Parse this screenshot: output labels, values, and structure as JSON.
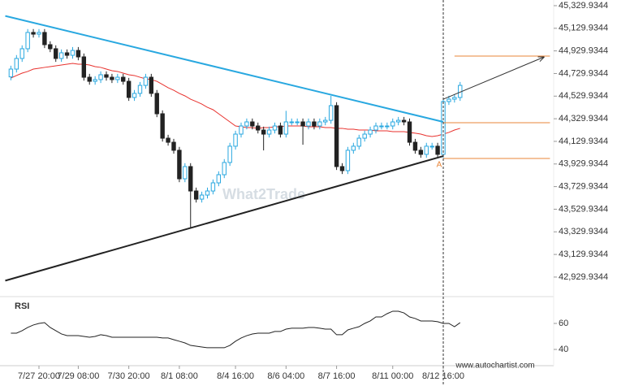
{
  "chart_data": {
    "type": "candlestick",
    "categories": [
      null,
      null,
      null,
      null,
      null,
      "7/27 20:00",
      null,
      null,
      null,
      null,
      null,
      null,
      "7/29 08:00",
      null,
      null,
      null,
      null,
      null,
      null,
      null,
      null,
      "7/30 20:00",
      null,
      null,
      null,
      null,
      null,
      null,
      null,
      null,
      "8/1 08:00",
      null,
      null,
      null,
      null,
      null,
      null,
      null,
      null,
      null,
      "8/4 16:00",
      null,
      null,
      null,
      null,
      null,
      null,
      null,
      null,
      "8/6 04:00",
      null,
      null,
      null,
      null,
      null,
      null,
      null,
      null,
      "8/7 16:00",
      null,
      null,
      null,
      null,
      null,
      null,
      null,
      null,
      null,
      "8/11 00:00",
      null,
      null,
      null,
      null,
      null,
      null,
      null,
      null,
      "8/12 16:00",
      null,
      null,
      null
    ],
    "open": [
      44700,
      44769,
      44863,
      44949,
      45093,
      45078,
      45093,
      44985,
      44949,
      44863,
      44913,
      44891,
      44934,
      44877,
      44697,
      44661,
      44676,
      44719,
      44697,
      44676,
      44697,
      44661,
      44518,
      44554,
      44625,
      44697,
      44554,
      44374,
      44158,
      44122,
      44051,
      43799,
      43907,
      43691,
      43619,
      43655,
      43691,
      43763,
      43835,
      43943,
      44087,
      44194,
      44266,
      44302,
      44266,
      44230,
      44194,
      44230,
      44266,
      44194,
      44302,
      44302,
      44302,
      44266,
      44302,
      44266,
      44302,
      44316,
      44446,
      43907,
      43871,
      44051,
      44087,
      44158,
      44194,
      44230,
      44266,
      44266,
      44266,
      44302,
      44316,
      44302,
      44122,
      44051,
      44015,
      44087,
      44087,
      44015,
      44482,
      44503,
      44518
    ],
    "high": [
      44799,
      44893,
      44979,
      45123,
      45123,
      45123,
      45123,
      45015,
      44979,
      44943,
      44943,
      44964,
      44964,
      44907,
      44727,
      44706,
      44749,
      44749,
      44727,
      44727,
      44727,
      44691,
      44584,
      44655,
      44727,
      44727,
      44584,
      44404,
      44188,
      44152,
      44081,
      43937,
      43937,
      43721,
      43685,
      43721,
      43793,
      43865,
      43973,
      44117,
      44224,
      44296,
      44332,
      44332,
      44296,
      44260,
      44260,
      44296,
      44296,
      44400,
      44332,
      44332,
      44332,
      44332,
      44332,
      44332,
      44346,
      44532,
      44476,
      43937,
      44081,
      44117,
      44188,
      44224,
      44260,
      44296,
      44296,
      44296,
      44332,
      44346,
      44346,
      44332,
      44152,
      44081,
      44117,
      44117,
      44117,
      44512,
      44533,
      44548,
      44655
    ],
    "low": [
      44670,
      44739,
      44833,
      44919,
      45048,
      45048,
      44955,
      44919,
      44833,
      44833,
      44861,
      44861,
      44847,
      44667,
      44631,
      44631,
      44646,
      44667,
      44646,
      44646,
      44631,
      44488,
      44488,
      44524,
      44595,
      44524,
      44344,
      44128,
      44092,
      44021,
      43769,
      43769,
      43368,
      43589,
      43589,
      43625,
      43661,
      43733,
      43805,
      43913,
      44057,
      44164,
      44236,
      44236,
      44200,
      44050,
      44164,
      44200,
      44164,
      44164,
      44272,
      44272,
      44100,
      44236,
      44236,
      44236,
      44272,
      44286,
      43877,
      43841,
      43841,
      44021,
      44057,
      44128,
      44164,
      44200,
      44236,
      44236,
      44236,
      44272,
      44272,
      44092,
      44021,
      43985,
      43985,
      44057,
      43985,
      43985,
      44452,
      44473,
      44488
    ],
    "close": [
      44769,
      44863,
      44949,
      45093,
      45078,
      45093,
      44985,
      44949,
      44863,
      44913,
      44891,
      44934,
      44877,
      44697,
      44661,
      44676,
      44719,
      44697,
      44676,
      44697,
      44661,
      44518,
      44554,
      44625,
      44697,
      44554,
      44374,
      44158,
      44122,
      44051,
      43799,
      43907,
      43691,
      43619,
      43655,
      43691,
      43763,
      43835,
      43943,
      44087,
      44194,
      44266,
      44302,
      44266,
      44230,
      44194,
      44230,
      44266,
      44194,
      44302,
      44302,
      44302,
      44266,
      44302,
      44266,
      44302,
      44316,
      44446,
      43907,
      43871,
      44051,
      44087,
      44158,
      44194,
      44230,
      44266,
      44266,
      44266,
      44302,
      44316,
      44302,
      44122,
      44051,
      44015,
      44087,
      44087,
      44015,
      44482,
      44503,
      44518,
      44625
    ],
    "up_color": "#29a8e0",
    "down_color": "#222222",
    "ylim": [
      42757,
      45380
    ],
    "yticks": [
      {
        "value": 42929.9344,
        "label": "42,929.9344"
      },
      {
        "value": 43129.9344,
        "label": "43,129.9344"
      },
      {
        "value": 43329.9344,
        "label": "43,329.9344"
      },
      {
        "value": 43529.9344,
        "label": "43,529.9344"
      },
      {
        "value": 43729.9344,
        "label": "43,729.9344"
      },
      {
        "value": 43929.9344,
        "label": "43,929.9344"
      },
      {
        "value": 44129.9344,
        "label": "44,129.9344"
      },
      {
        "value": 44329.9344,
        "label": "44,329.9344"
      },
      {
        "value": 44529.9344,
        "label": "44,529.9344"
      },
      {
        "value": 44729.9344,
        "label": "44,729.9344"
      },
      {
        "value": 44929.9344,
        "label": "44,929.9344"
      },
      {
        "value": 45129.9344,
        "label": "45,129.9344"
      },
      {
        "value": 45329.9344,
        "label": "45,329.9344"
      }
    ],
    "moving_average": {
      "color": "#e8322e",
      "values": [
        44690,
        44712,
        44733,
        44748,
        44769,
        44776,
        44784,
        44791,
        44798,
        44805,
        44812,
        44819,
        44812,
        44812,
        44805,
        44791,
        44784,
        44769,
        44755,
        44748,
        44733,
        44719,
        44712,
        44697,
        44683,
        44676,
        44661,
        44633,
        44604,
        44582,
        44554,
        44532,
        44503,
        44482,
        44460,
        44431,
        44410,
        44374,
        44338,
        44302,
        44266,
        44259,
        44252,
        44252,
        44245,
        44252,
        44252,
        44259,
        44259,
        44266,
        44266,
        44266,
        44266,
        44259,
        44259,
        44259,
        44252,
        44252,
        44245,
        44245,
        44237,
        44237,
        44230,
        44230,
        44230,
        44223,
        44223,
        44223,
        44216,
        44216,
        44216,
        44209,
        44202,
        44194,
        44180,
        44173,
        44180,
        44194,
        44209,
        44230,
        44245
      ]
    },
    "trendlines": [
      {
        "color": "#29a8e0",
        "from": [
          -1,
          45239
        ],
        "to": [
          77,
          44302
        ]
      },
      {
        "color": "#222222",
        "from": [
          -1,
          42898
        ],
        "to": [
          77,
          44000
        ]
      }
    ],
    "levels": [
      {
        "color": "#e8863a",
        "value": 44884,
        "from": 79,
        "to": 96
      },
      {
        "color": "#e8863a",
        "value": 44295,
        "from": 77,
        "to": 96
      },
      {
        "color": "#e8863a",
        "value": 43979,
        "from": 77,
        "to": 96
      }
    ],
    "arrow": {
      "color": "#333333",
      "from": [
        77,
        44503
      ],
      "to": [
        95,
        44877
      ]
    },
    "marker": {
      "index": 77,
      "label": "A",
      "color": "#e8863a"
    },
    "watermark": "What2Trade",
    "source": "www.autochartist.com",
    "rsi": {
      "title": "RSI",
      "color": "#222222",
      "ylim": [
        27.5,
        77.5
      ],
      "yticks": [
        40,
        60
      ],
      "values": [
        52.5,
        52.5,
        54.4,
        56.9,
        58.8,
        60,
        60.6,
        56.9,
        54.4,
        51.9,
        50.6,
        50.6,
        50.6,
        50,
        49.4,
        50,
        51.3,
        50.6,
        49.4,
        49.4,
        49.4,
        49.4,
        49.4,
        49.4,
        49.4,
        49.4,
        49.4,
        48.8,
        48.8,
        47.5,
        46.3,
        45,
        43.1,
        42.5,
        41.9,
        41.3,
        41.3,
        41.3,
        41.3,
        43.1,
        46.3,
        48.8,
        50.6,
        51.9,
        52.5,
        52.5,
        52.5,
        53.8,
        53.8,
        55.6,
        56.3,
        56.3,
        56.3,
        56.9,
        56.9,
        56.3,
        55.6,
        55.6,
        51.3,
        51.3,
        55,
        56.3,
        57.5,
        60,
        61.9,
        65,
        65,
        67.5,
        69.4,
        69.4,
        68.1,
        65,
        63.8,
        61.9,
        61.9,
        61.9,
        61.3,
        60,
        60,
        57.5,
        60.6
      ]
    }
  }
}
